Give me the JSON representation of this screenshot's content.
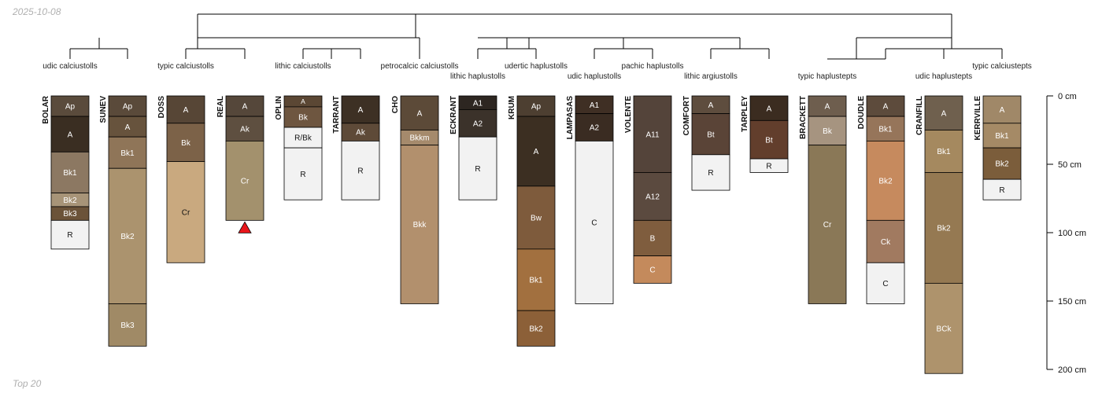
{
  "corner": {
    "date": "2025-10-08",
    "caption": "Top 20"
  },
  "depth_axis": {
    "unit": "cm",
    "max_depth": 200,
    "ticks": [
      {
        "depth": 0,
        "label": "0 cm"
      },
      {
        "depth": 50,
        "label": "50 cm"
      },
      {
        "depth": 100,
        "label": "100 cm"
      },
      {
        "depth": 150,
        "label": "150 cm"
      },
      {
        "depth": 200,
        "label": "200 cm"
      }
    ]
  },
  "chart_data": {
    "type": "soil-profile-sketch-with-dendrogram",
    "title": "",
    "taxa_labels": [
      {
        "text": "udic calciustolls",
        "over": 0
      },
      {
        "text": "typic calciustolls",
        "over": 2
      },
      {
        "text": "lithic calciustolls",
        "over": 4
      },
      {
        "text": "petrocalcic calciustolls",
        "over": 6
      },
      {
        "text": "lithic haplustolls",
        "over": 7
      },
      {
        "text": "udertic haplustolls",
        "over": 8
      },
      {
        "text": "udic haplustolls",
        "over": 9
      },
      {
        "text": "pachic haplustolls",
        "over": 10
      },
      {
        "text": "lithic argiustolls",
        "over": 11
      },
      {
        "text": "typic haplustepts",
        "over": 13
      },
      {
        "text": "udic haplustepts",
        "over": 15
      },
      {
        "text": "typic calciustepts",
        "over": 16
      }
    ],
    "profiles": [
      {
        "name": "BOLAR",
        "horizons": [
          {
            "name": "Ap",
            "top": 0,
            "bottom": 15,
            "color": "#5a4b3c"
          },
          {
            "name": "A",
            "top": 15,
            "bottom": 41,
            "color": "#3a2e22"
          },
          {
            "name": "Bk1",
            "top": 41,
            "bottom": 71,
            "color": "#8c7862"
          },
          {
            "name": "Bk2",
            "top": 71,
            "bottom": 81,
            "color": "#a79478"
          },
          {
            "name": "Bk3",
            "top": 81,
            "bottom": 91,
            "color": "#6b5339"
          },
          {
            "name": "R",
            "top": 91,
            "bottom": 112,
            "color": "#f2f2f2"
          }
        ]
      },
      {
        "name": "SUNEV",
        "horizons": [
          {
            "name": "Ap",
            "top": 0,
            "bottom": 15,
            "color": "#5a4a3a"
          },
          {
            "name": "A",
            "top": 15,
            "bottom": 30,
            "color": "#67533d"
          },
          {
            "name": "Bk1",
            "top": 30,
            "bottom": 53,
            "color": "#8f7558"
          },
          {
            "name": "Bk2",
            "top": 53,
            "bottom": 152,
            "color": "#ab936e"
          },
          {
            "name": "Bk3",
            "top": 152,
            "bottom": 183,
            "color": "#a08a66"
          }
        ]
      },
      {
        "name": "DOSS",
        "horizons": [
          {
            "name": "A",
            "top": 0,
            "bottom": 20,
            "color": "#574636"
          },
          {
            "name": "Bk",
            "top": 20,
            "bottom": 48,
            "color": "#7c6248"
          },
          {
            "name": "Cr",
            "top": 48,
            "bottom": 122,
            "color": "#c9a97f"
          }
        ]
      },
      {
        "name": "REAL",
        "horizons": [
          {
            "name": "A",
            "top": 0,
            "bottom": 15,
            "color": "#55473a"
          },
          {
            "name": "Ak",
            "top": 15,
            "bottom": 33,
            "color": "#5e4f40"
          },
          {
            "name": "Cr",
            "top": 33,
            "bottom": 91,
            "color": "#a3916d"
          }
        ],
        "truncated": true
      },
      {
        "name": "OPLIN",
        "horizons": [
          {
            "name": "A",
            "top": 0,
            "bottom": 8,
            "color": "#5b4734"
          },
          {
            "name": "Bk",
            "top": 8,
            "bottom": 23,
            "color": "#6e5640"
          },
          {
            "name": "R/Bk",
            "top": 23,
            "bottom": 38,
            "color": "#f2f2f2"
          },
          {
            "name": "R",
            "top": 38,
            "bottom": 76,
            "color": "#f2f2f2"
          }
        ]
      },
      {
        "name": "TARRANT",
        "horizons": [
          {
            "name": "A",
            "top": 0,
            "bottom": 20,
            "color": "#3d3024"
          },
          {
            "name": "Ak",
            "top": 20,
            "bottom": 33,
            "color": "#5e4a38"
          },
          {
            "name": "R",
            "top": 33,
            "bottom": 76,
            "color": "#f2f2f2"
          }
        ]
      },
      {
        "name": "CHO",
        "horizons": [
          {
            "name": "A",
            "top": 0,
            "bottom": 25,
            "color": "#5c4a38"
          },
          {
            "name": "Bkkm",
            "top": 25,
            "bottom": 36,
            "color": "#a58a6c"
          },
          {
            "name": "Bkk",
            "top": 36,
            "bottom": 152,
            "color": "#b2906d"
          }
        ]
      },
      {
        "name": "ECKRANT",
        "horizons": [
          {
            "name": "A1",
            "top": 0,
            "bottom": 10,
            "color": "#2d2621"
          },
          {
            "name": "A2",
            "top": 10,
            "bottom": 30,
            "color": "#3b322a"
          },
          {
            "name": "R",
            "top": 30,
            "bottom": 76,
            "color": "#f2f2f2"
          }
        ]
      },
      {
        "name": "KRUM",
        "horizons": [
          {
            "name": "Ap",
            "top": 0,
            "bottom": 15,
            "color": "#4d3f31"
          },
          {
            "name": "A",
            "top": 15,
            "bottom": 66,
            "color": "#3c2f22"
          },
          {
            "name": "Bw",
            "top": 66,
            "bottom": 112,
            "color": "#7e5b3c"
          },
          {
            "name": "Bk1",
            "top": 112,
            "bottom": 157,
            "color": "#a2703f"
          },
          {
            "name": "Bk2",
            "top": 157,
            "bottom": 183,
            "color": "#8c6038"
          }
        ]
      },
      {
        "name": "LAMPASAS",
        "horizons": [
          {
            "name": "A1",
            "top": 0,
            "bottom": 13,
            "color": "#3f2f24"
          },
          {
            "name": "A2",
            "top": 13,
            "bottom": 33,
            "color": "#3a2c22"
          },
          {
            "name": "C",
            "top": 33,
            "bottom": 152,
            "color": "#f2f2f2"
          }
        ]
      },
      {
        "name": "VOLENTE",
        "horizons": [
          {
            "name": "A11",
            "top": 0,
            "bottom": 56,
            "color": "#54443a"
          },
          {
            "name": "A12",
            "top": 56,
            "bottom": 91,
            "color": "#5b4a3f"
          },
          {
            "name": "B",
            "top": 91,
            "bottom": 117,
            "color": "#7f5d3e"
          },
          {
            "name": "C",
            "top": 117,
            "bottom": 137,
            "color": "#c48a5c"
          }
        ]
      },
      {
        "name": "COMFORT",
        "horizons": [
          {
            "name": "A",
            "top": 0,
            "bottom": 13,
            "color": "#5e4d3e"
          },
          {
            "name": "Bt",
            "top": 13,
            "bottom": 43,
            "color": "#5a4437"
          },
          {
            "name": "R",
            "top": 43,
            "bottom": 69,
            "color": "#f2f2f2"
          }
        ]
      },
      {
        "name": "TARPLEY",
        "horizons": [
          {
            "name": "A",
            "top": 0,
            "bottom": 18,
            "color": "#3b2c20"
          },
          {
            "name": "Bt",
            "top": 18,
            "bottom": 46,
            "color": "#623e2c"
          },
          {
            "name": "R",
            "top": 46,
            "bottom": 56,
            "color": "#f2f2f2"
          }
        ]
      },
      {
        "name": "BRACKETT",
        "horizons": [
          {
            "name": "A",
            "top": 0,
            "bottom": 15,
            "color": "#6e5e4e"
          },
          {
            "name": "Bk",
            "top": 15,
            "bottom": 36,
            "color": "#a69480"
          },
          {
            "name": "Cr",
            "top": 36,
            "bottom": 152,
            "color": "#8a7857"
          }
        ]
      },
      {
        "name": "DOUDLE",
        "horizons": [
          {
            "name": "A",
            "top": 0,
            "bottom": 15,
            "color": "#5d4b3c"
          },
          {
            "name": "Bk1",
            "top": 15,
            "bottom": 33,
            "color": "#96755a"
          },
          {
            "name": "Bk2",
            "top": 33,
            "bottom": 91,
            "color": "#c68a5e"
          },
          {
            "name": "Ck",
            "top": 91,
            "bottom": 122,
            "color": "#a17a60"
          },
          {
            "name": "C",
            "top": 122,
            "bottom": 152,
            "color": "#f2f2f2"
          }
        ]
      },
      {
        "name": "CRANFILL",
        "horizons": [
          {
            "name": "A",
            "top": 0,
            "bottom": 25,
            "color": "#6f604e"
          },
          {
            "name": "Bk1",
            "top": 25,
            "bottom": 56,
            "color": "#a5895f"
          },
          {
            "name": "Bk2",
            "top": 56,
            "bottom": 137,
            "color": "#957952"
          },
          {
            "name": "BCk",
            "top": 137,
            "bottom": 203,
            "color": "#ae936c"
          }
        ]
      },
      {
        "name": "KERRVILLE",
        "horizons": [
          {
            "name": "A",
            "top": 0,
            "bottom": 20,
            "color": "#a08868"
          },
          {
            "name": "Bk1",
            "top": 20,
            "bottom": 38,
            "color": "#a58a66"
          },
          {
            "name": "Bk2",
            "top": 38,
            "bottom": 61,
            "color": "#7b5d3b"
          },
          {
            "name": "R",
            "top": 61,
            "bottom": 76,
            "color": "#f2f2f2"
          }
        ]
      }
    ]
  }
}
